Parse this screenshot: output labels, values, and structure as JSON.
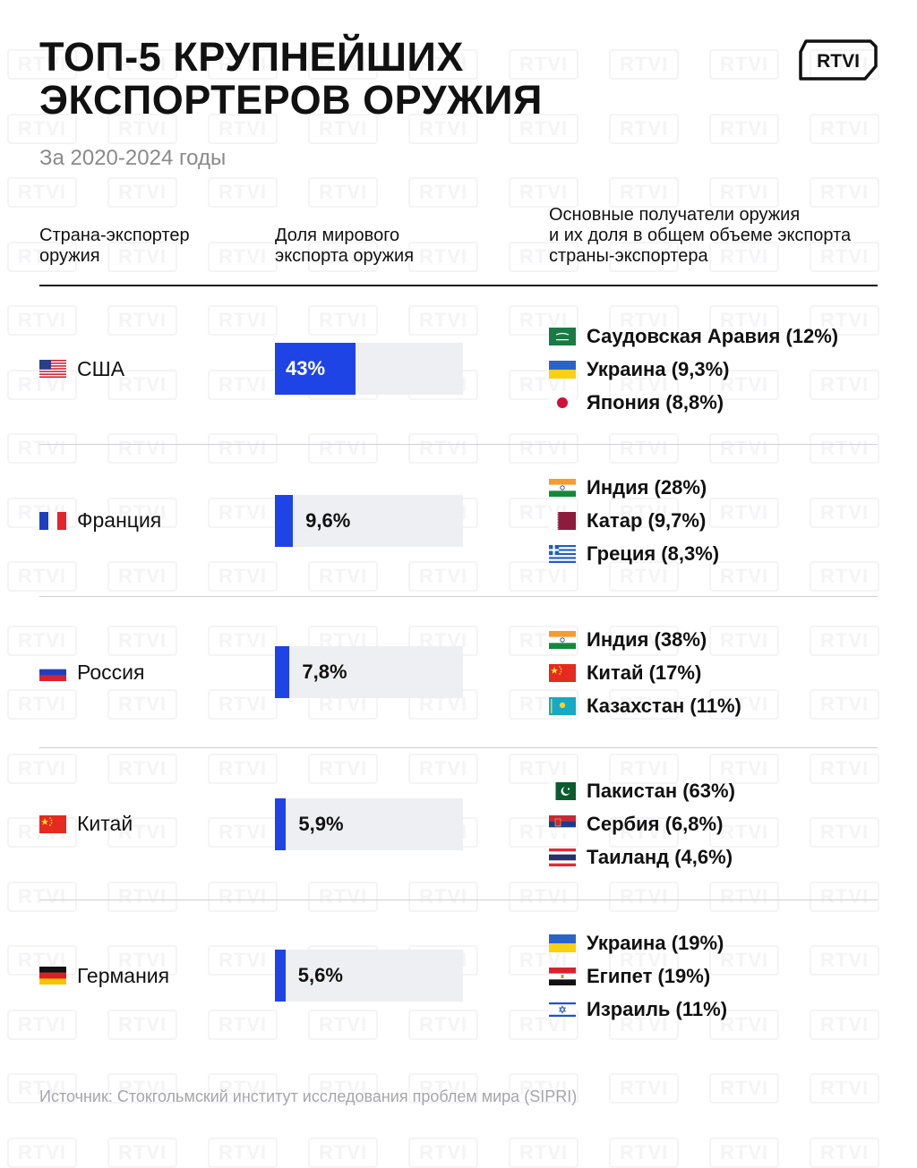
{
  "title_line1": "ТОП-5 КРУПНЕЙШИХ",
  "title_line2": "ЭКСПОРТЕРОВ ОРУЖИЯ",
  "subtitle": "За 2020-2024 годы",
  "logo_text": "RTVI",
  "headers": {
    "exporter": [
      "Страна-экспортер",
      "оружия"
    ],
    "share": [
      "Доля мирового",
      "экспорта оружия"
    ],
    "recipients": [
      "Основные получатели оружия",
      "и их доля в общем объеме экспорта",
      "страны-экспортера"
    ]
  },
  "source": "Источник: Стокгольмский институт исследования проблем мира (SIPRI)",
  "colors": {
    "bar": "#1f44e6",
    "track": "#eeeff3"
  },
  "chart_data": {
    "type": "bar",
    "title": "ТОП-5 КРУПНЕЙШИХ ЭКСПОРТЕРОВ ОРУЖИЯ",
    "subtitle": "За 2020-2024 годы",
    "categories": [
      "США",
      "Франция",
      "Россия",
      "Китай",
      "Германия"
    ],
    "values": [
      43,
      9.6,
      7.8,
      5.9,
      5.6
    ],
    "value_labels": [
      "43%",
      "9,6%",
      "7,8%",
      "5,9%",
      "5,6%"
    ],
    "unit": "%",
    "ylim": [
      0,
      100
    ],
    "rows": [
      {
        "country": "США",
        "flag": "us-flag-icon",
        "share": 43,
        "share_label": "43%",
        "recipients": [
          {
            "label": "Саудовская Аравия (12%)",
            "flag": "saudi-arabia-flag-icon"
          },
          {
            "label": "Украина (9,3%)",
            "flag": "ukraine-flag-icon"
          },
          {
            "label": "Япония (8,8%)",
            "flag": "japan-flag-icon"
          }
        ]
      },
      {
        "country": "Франция",
        "flag": "france-flag-icon",
        "share": 9.6,
        "share_label": "9,6%",
        "recipients": [
          {
            "label": "Индия (28%)",
            "flag": "india-flag-icon"
          },
          {
            "label": "Катар (9,7%)",
            "flag": "qatar-flag-icon"
          },
          {
            "label": "Греция (8,3%)",
            "flag": "greece-flag-icon"
          }
        ]
      },
      {
        "country": "Россия",
        "flag": "russia-flag-icon",
        "share": 7.8,
        "share_label": "7,8%",
        "recipients": [
          {
            "label": "Индия (38%)",
            "flag": "india-flag-icon"
          },
          {
            "label": "Китай (17%)",
            "flag": "china-flag-icon"
          },
          {
            "label": "Казахстан (11%)",
            "flag": "kazakhstan-flag-icon"
          }
        ]
      },
      {
        "country": "Китай",
        "flag": "china-flag-icon",
        "share": 5.9,
        "share_label": "5,9%",
        "recipients": [
          {
            "label": "Пакистан (63%)",
            "flag": "pakistan-flag-icon"
          },
          {
            "label": "Сербия (6,8%)",
            "flag": "serbia-flag-icon"
          },
          {
            "label": "Таиланд (4,6%)",
            "flag": "thailand-flag-icon"
          }
        ]
      },
      {
        "country": "Германия",
        "flag": "germany-flag-icon",
        "share": 5.6,
        "share_label": "5,6%",
        "recipients": [
          {
            "label": "Украина (19%)",
            "flag": "ukraine-flag-icon"
          },
          {
            "label": "Египет (19%)",
            "flag": "egypt-flag-icon"
          },
          {
            "label": "Израиль (11%)",
            "flag": "israel-flag-icon"
          }
        ]
      }
    ]
  }
}
